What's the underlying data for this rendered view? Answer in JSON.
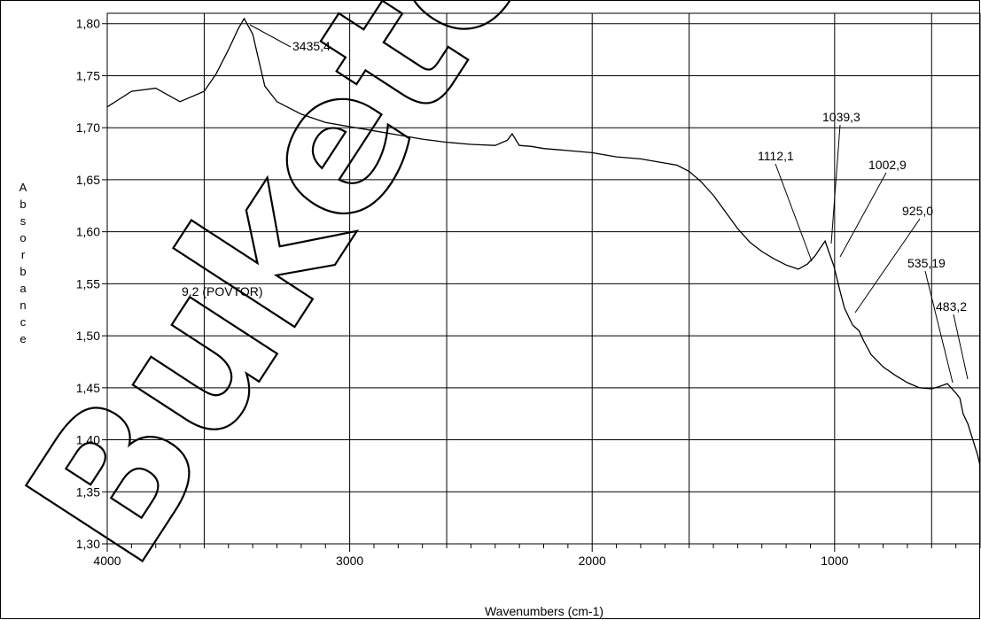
{
  "chart_data": {
    "type": "line",
    "title": "",
    "xlabel": "Wavenumbers (cm-1)",
    "ylabel": "Absorbance",
    "xlim": [
      4000,
      400
    ],
    "ylim": [
      1.3,
      1.81
    ],
    "x_reversed": true,
    "grid": true,
    "x_ticks": [
      {
        "value": 4000,
        "label": "4000"
      },
      {
        "value": 3000,
        "label": "3000"
      },
      {
        "value": 2000,
        "label": "2000"
      },
      {
        "value": 1000,
        "label": "1000"
      }
    ],
    "x_gridlines": [
      3600,
      3000,
      2600,
      2000,
      1600,
      1000,
      600
    ],
    "y_ticks": [
      {
        "value": 1.3,
        "label": "1,30"
      },
      {
        "value": 1.35,
        "label": "1,35"
      },
      {
        "value": 1.4,
        "label": "1,40"
      },
      {
        "value": 1.45,
        "label": "1,45"
      },
      {
        "value": 1.5,
        "label": "1,50"
      },
      {
        "value": 1.55,
        "label": "1,55"
      },
      {
        "value": 1.6,
        "label": "1,60"
      },
      {
        "value": 1.65,
        "label": "1,65"
      },
      {
        "value": 1.7,
        "label": "1,70"
      },
      {
        "value": 1.75,
        "label": "1,75"
      },
      {
        "value": 1.8,
        "label": "1,80"
      }
    ],
    "series": [
      {
        "label": "9.2 (POVTOR)",
        "x": [
          4000,
          3900,
          3800,
          3700,
          3600,
          3550,
          3500,
          3460,
          3435.4,
          3400,
          3380,
          3350,
          3300,
          3200,
          3100,
          3000,
          2900,
          2800,
          2700,
          2600,
          2500,
          2400,
          2350,
          2330,
          2300,
          2250,
          2200,
          2100,
          2000,
          1900,
          1800,
          1700,
          1650,
          1600,
          1550,
          1500,
          1450,
          1400,
          1350,
          1300,
          1250,
          1200,
          1150,
          1112.1,
          1080,
          1060,
          1039.3,
          1020,
          1002.9,
          980,
          960,
          940,
          925.0,
          900,
          880,
          850,
          800,
          750,
          700,
          650,
          600,
          570,
          535.19,
          520,
          500,
          483.2,
          470,
          450,
          430,
          410,
          400
        ],
        "y": [
          1.72,
          1.735,
          1.738,
          1.725,
          1.735,
          1.752,
          1.775,
          1.795,
          1.805,
          1.79,
          1.77,
          1.74,
          1.725,
          1.713,
          1.705,
          1.701,
          1.697,
          1.693,
          1.689,
          1.686,
          1.684,
          1.683,
          1.688,
          1.694,
          1.683,
          1.682,
          1.68,
          1.678,
          1.676,
          1.672,
          1.67,
          1.666,
          1.664,
          1.658,
          1.648,
          1.635,
          1.619,
          1.603,
          1.59,
          1.581,
          1.574,
          1.568,
          1.564,
          1.569,
          1.577,
          1.584,
          1.591,
          1.578,
          1.567,
          1.545,
          1.527,
          1.517,
          1.51,
          1.505,
          1.495,
          1.482,
          1.47,
          1.462,
          1.455,
          1.45,
          1.449,
          1.451,
          1.454,
          1.45,
          1.445,
          1.44,
          1.425,
          1.415,
          1.4,
          1.385,
          1.375
        ]
      }
    ],
    "annotations": [
      {
        "text": "3435,4",
        "x": 3435.4
      },
      {
        "text": "1112,1",
        "x": 1112.1
      },
      {
        "text": "1039,3",
        "x": 1039.3
      },
      {
        "text": "1002,9",
        "x": 1002.9
      },
      {
        "text": "925,0",
        "x": 925.0
      },
      {
        "text": "535,19",
        "x": 535.19
      },
      {
        "text": "483,2",
        "x": 483.2
      }
    ],
    "watermark": "Buketov Uni"
  }
}
